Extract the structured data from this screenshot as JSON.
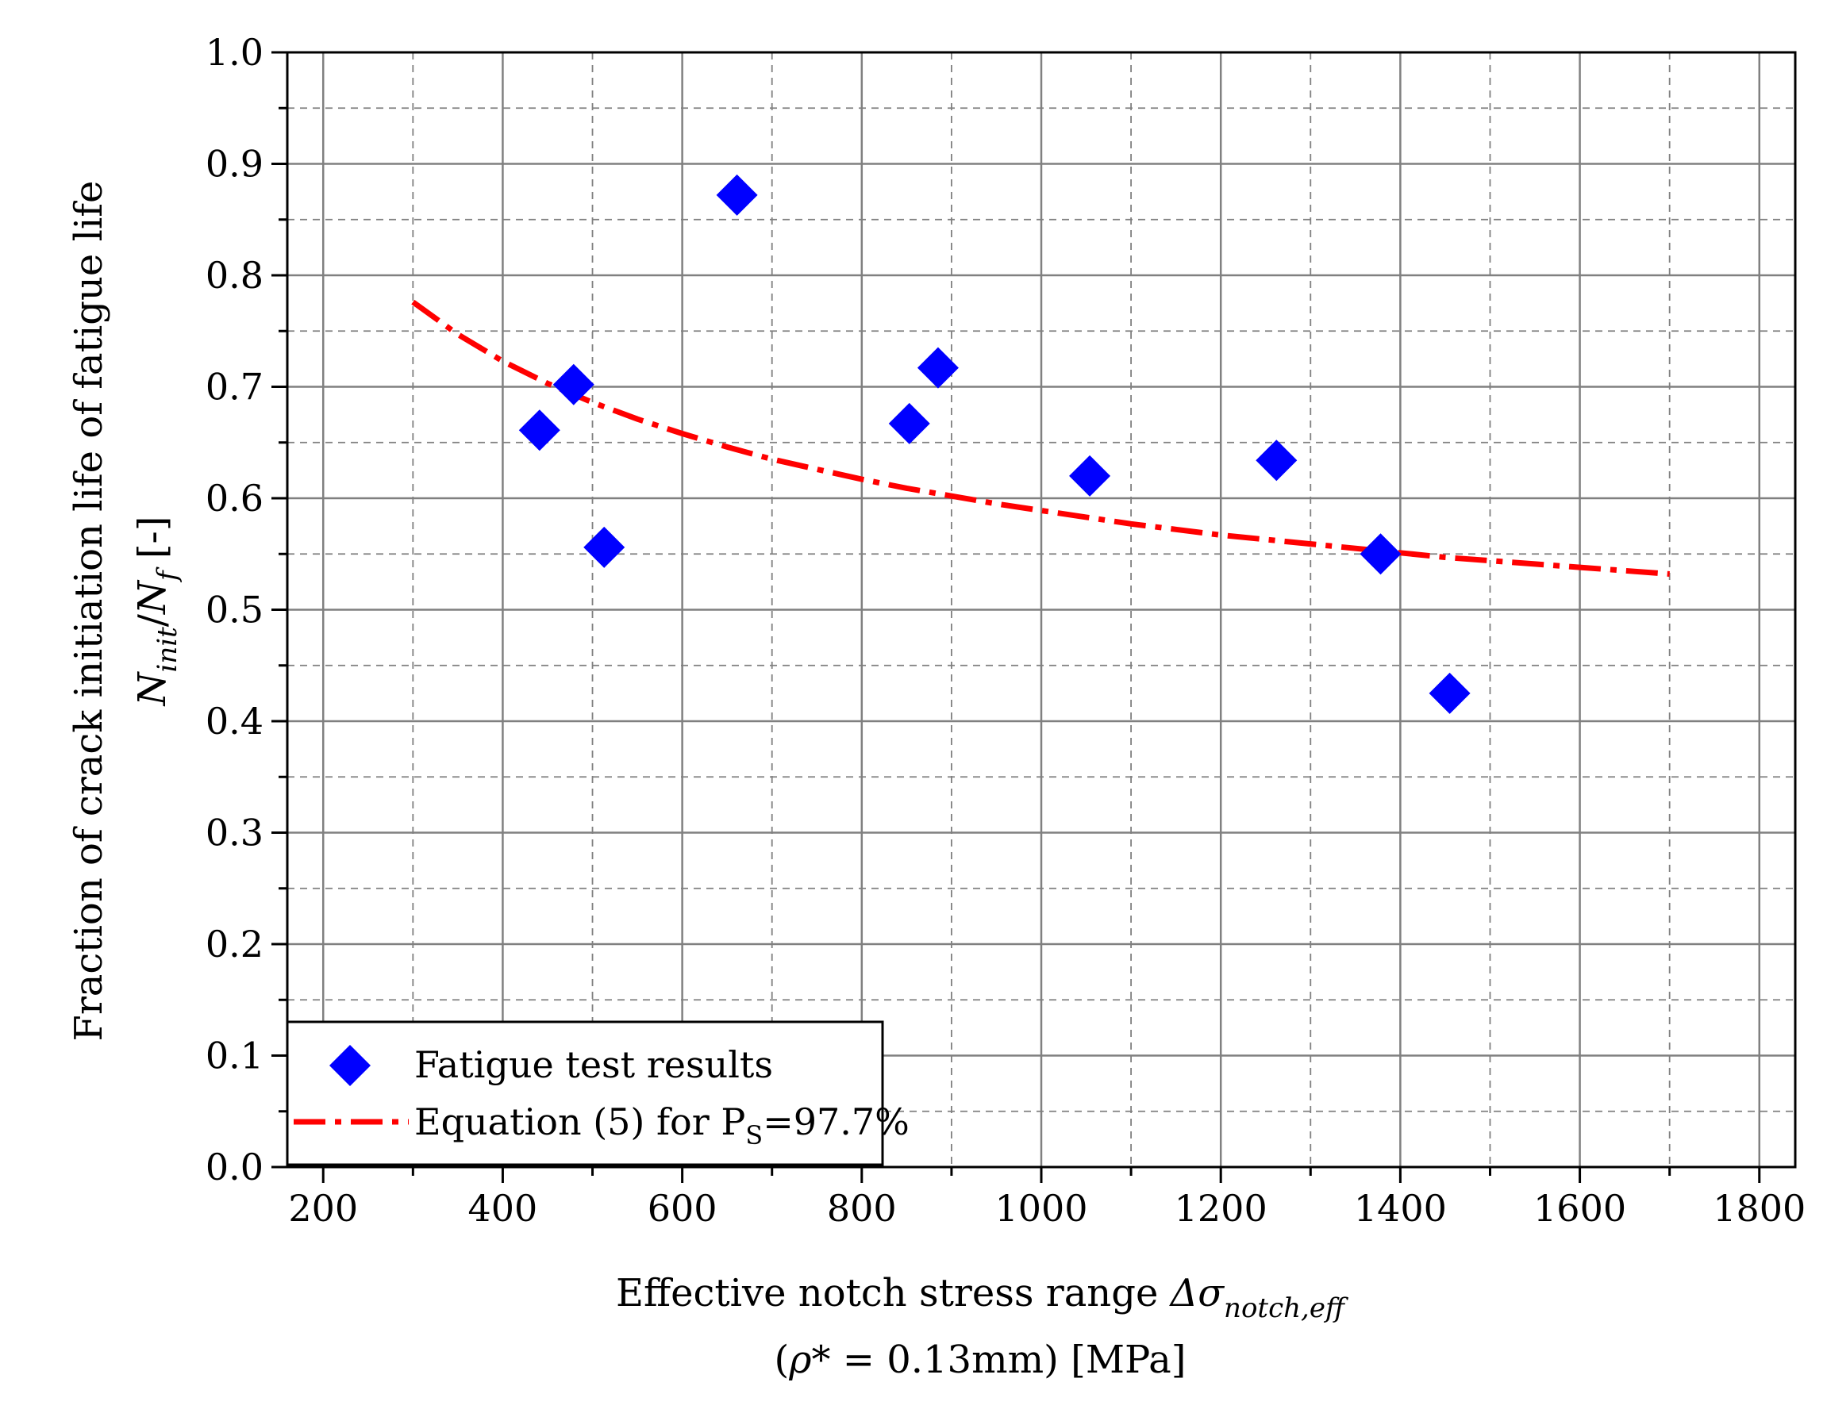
{
  "chart_data": {
    "type": "scatter",
    "title": "",
    "xlabel": {
      "line1_text": "Effective notch stress range ",
      "line1_symbol": "Δσ",
      "line1_subscript": "notch,eff",
      "line2_open": "(",
      "line2_symbol": "ρ*",
      "line2_rest": " = 0.13mm) [MPa]"
    },
    "ylabel": {
      "line1": "Fraction of crack initiation life of fatigue life",
      "line2_n": "N",
      "line2_sub_init": "init",
      "line2_slash": "/",
      "line2_nf": "N",
      "line2_sub_f": "f",
      "line2_unit": " [-]"
    },
    "xlim": [
      160,
      1840
    ],
    "ylim": [
      0.0,
      1.0
    ],
    "x_ticks": [
      200,
      400,
      600,
      800,
      1000,
      1200,
      1400,
      1600,
      1800
    ],
    "x_tick_labels": [
      "200",
      "400",
      "600",
      "800",
      "1000",
      "1200",
      "1400",
      "1600",
      "1800"
    ],
    "y_ticks": [
      0.0,
      0.1,
      0.2,
      0.3,
      0.4,
      0.5,
      0.6,
      0.7,
      0.8,
      0.9,
      1.0
    ],
    "y_tick_labels": [
      "0.0",
      "0.1",
      "0.2",
      "0.3",
      "0.4",
      "0.5",
      "0.6",
      "0.7",
      "0.8",
      "0.9",
      "1.0"
    ],
    "grid": true,
    "series": [
      {
        "name": "Fatigue test results",
        "kind": "scatter",
        "marker": "diamond",
        "color": "#0000ff",
        "x": [
          441,
          479,
          513,
          661,
          853,
          885,
          1054,
          1262,
          1378,
          1455
        ],
        "y": [
          0.661,
          0.702,
          0.556,
          0.872,
          0.667,
          0.717,
          0.62,
          0.634,
          0.55,
          0.425
        ]
      },
      {
        "name": "Equation (5) for P",
        "name_sub": "S",
        "name_rest": "=97.7%",
        "kind": "line",
        "style": "dash-dot",
        "color": "#ff0000",
        "x": [
          300,
          350,
          400,
          450,
          500,
          550,
          600,
          650,
          700,
          750,
          800,
          850,
          900,
          950,
          1000,
          1050,
          1100,
          1150,
          1200,
          1250,
          1300,
          1350,
          1400,
          1450,
          1500,
          1550,
          1600,
          1650,
          1700
        ],
        "y": [
          0.776,
          0.747,
          0.723,
          0.703,
          0.686,
          0.671,
          0.658,
          0.646,
          0.635,
          0.626,
          0.617,
          0.609,
          0.602,
          0.595,
          0.589,
          0.583,
          0.577,
          0.572,
          0.567,
          0.563,
          0.559,
          0.555,
          0.551,
          0.547,
          0.544,
          0.541,
          0.538,
          0.535,
          0.532
        ]
      }
    ],
    "legend_position": "bottom-left"
  }
}
